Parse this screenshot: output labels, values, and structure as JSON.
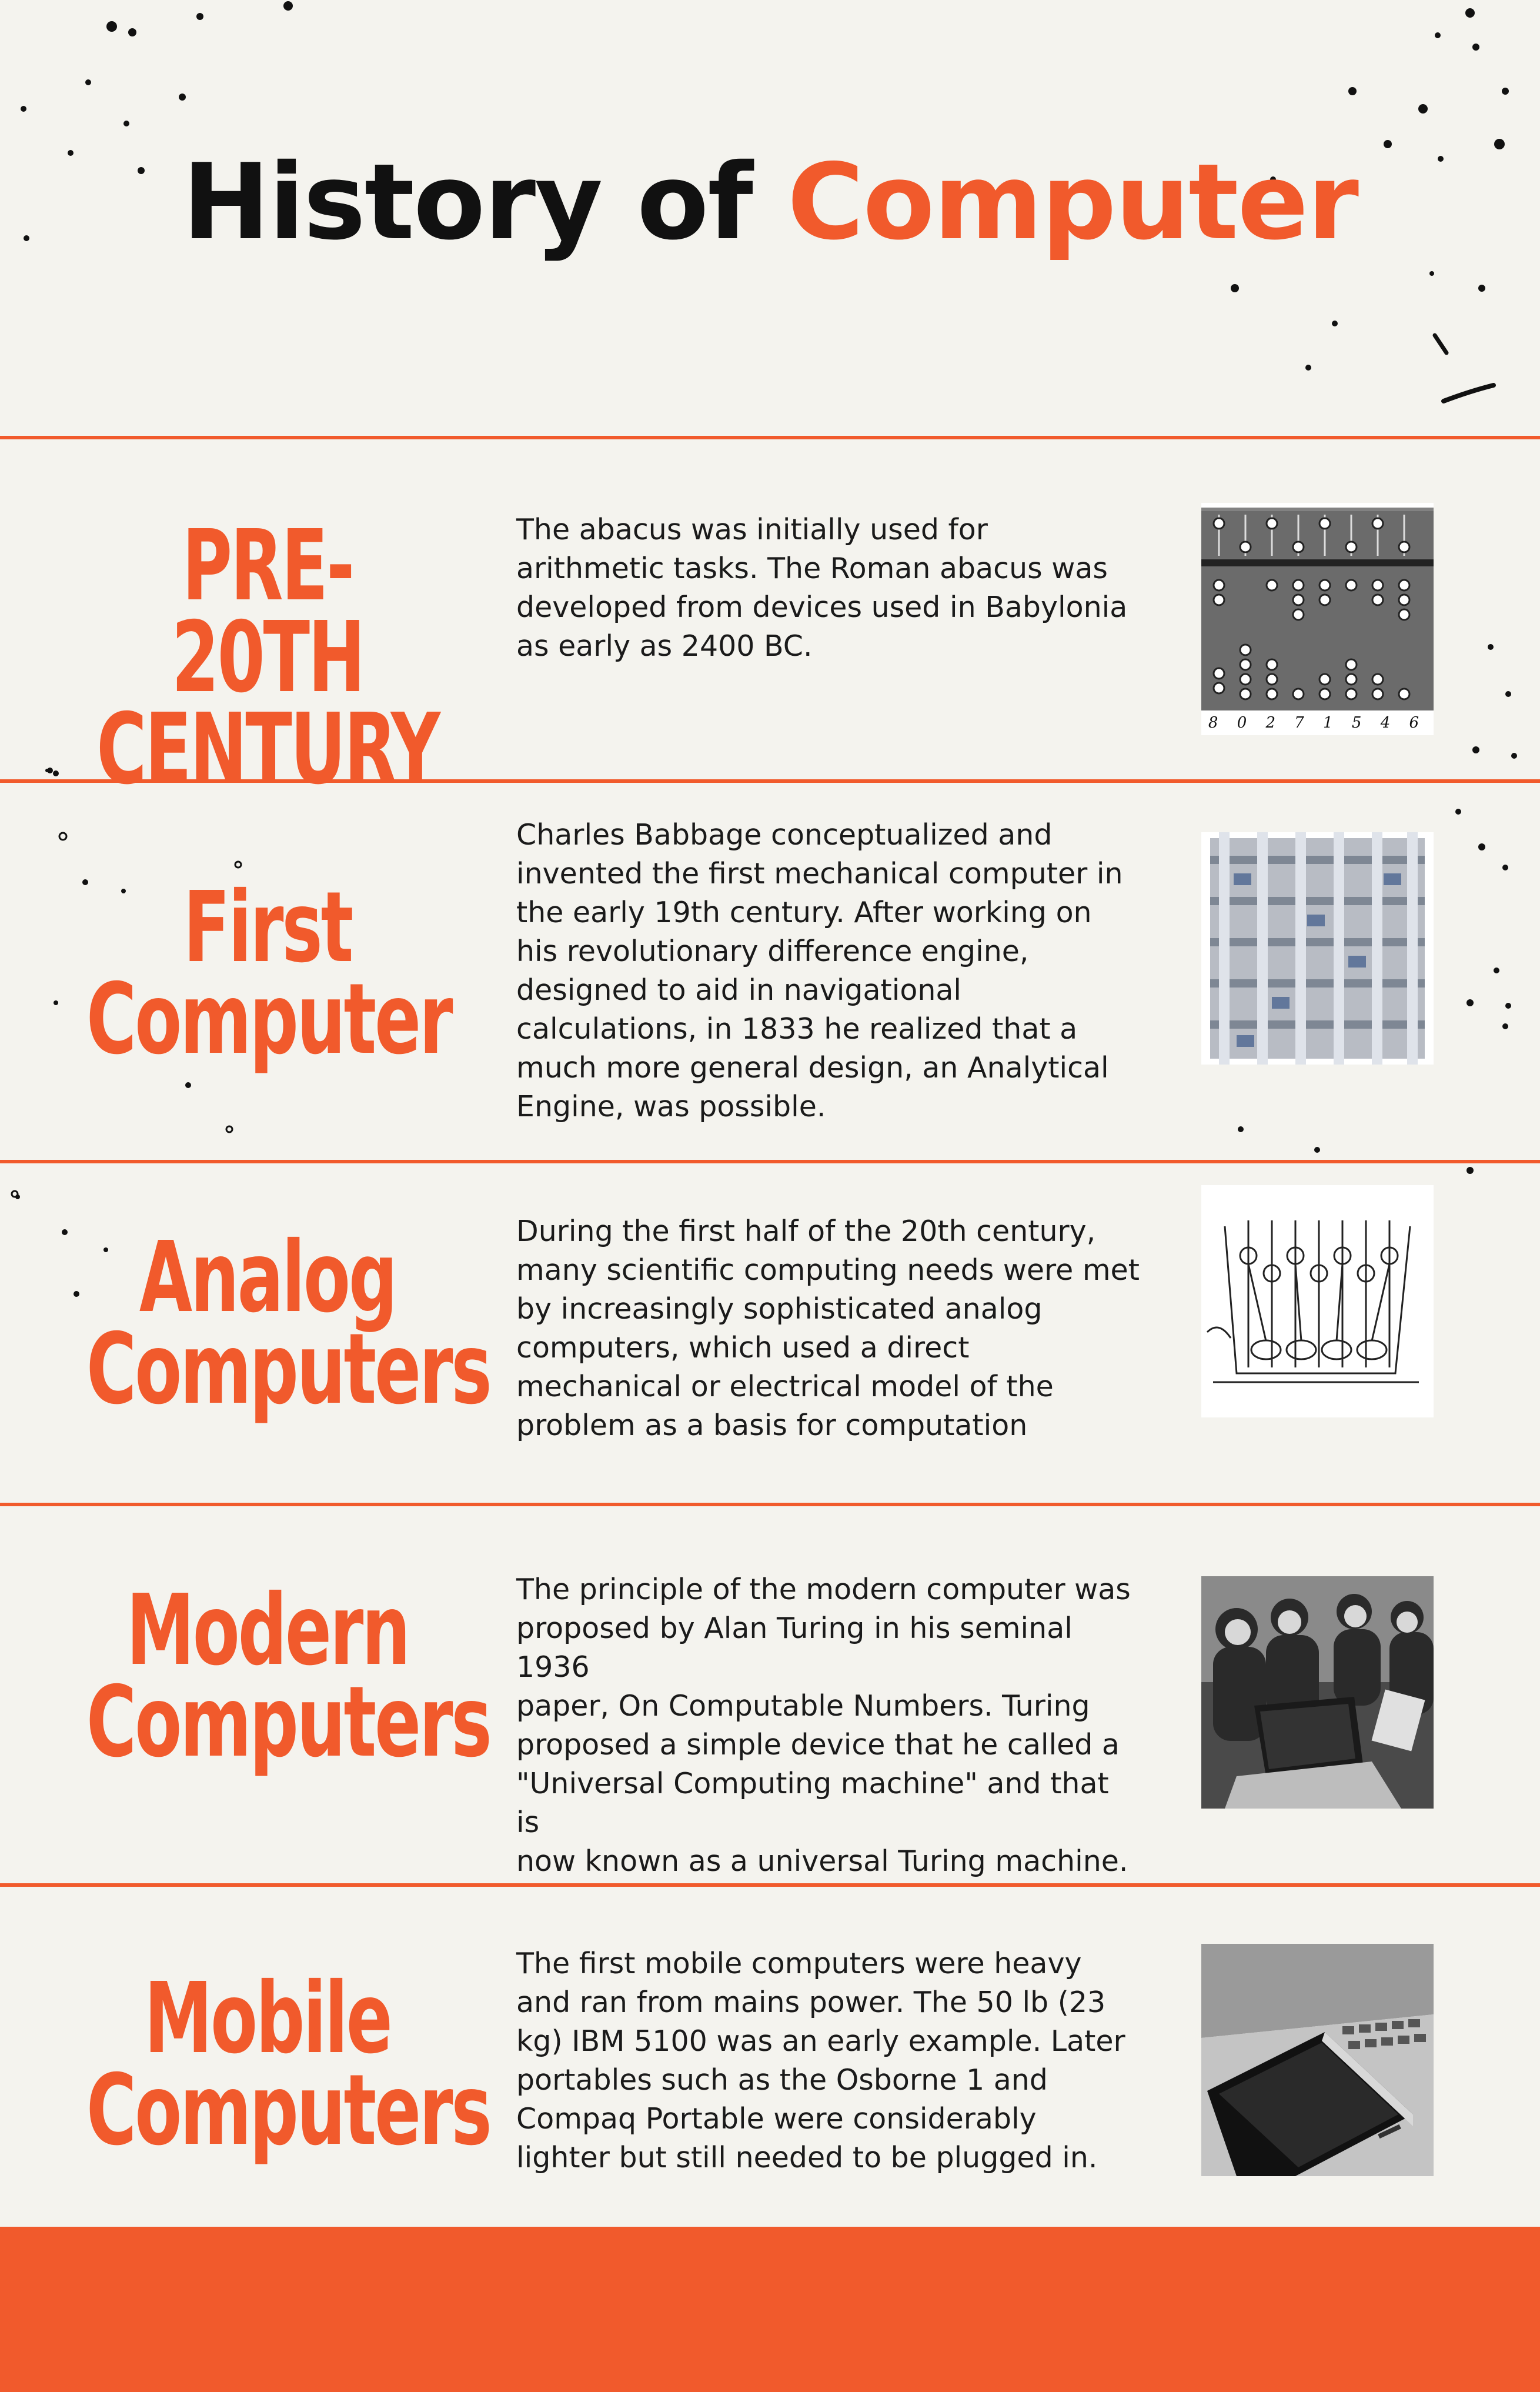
{
  "title": {
    "part1": "History of",
    "part2": "Computer"
  },
  "sections": [
    {
      "heading": "PRE-20TH\nCENTURY",
      "description": "The abacus was initially used for\narithmetic tasks. The Roman abacus was\ndeveloped from devices used in Babylonia\nas early as 2400 BC.",
      "image": "abacus-illustration",
      "image_caption": "8 0 2 7 1 5 4 6"
    },
    {
      "heading": "First\nComputer",
      "description": "Charles Babbage conceptualized and\ninvented the first mechanical computer in\nthe early 19th century. After working on\nhis revolutionary difference engine,\ndesigned to aid in navigational\ncalculations, in 1833 he realized that a\nmuch more general design, an Analytical\nEngine, was possible.",
      "image": "difference-engine-photo"
    },
    {
      "heading": "Analog\nComputers",
      "description": "During the first half of the 20th century,\nmany scientific computing needs were met\nby increasingly sophisticated analog\ncomputers, which used a direct\nmechanical or electrical model of the\nproblem as a basis for computation",
      "image": "analog-machine-drawing"
    },
    {
      "heading": "Modern\nComputers",
      "description": "The principle of the modern computer was\nproposed by Alan Turing in his seminal 1936\npaper, On Computable Numbers. Turing\nproposed a simple device that he called a\n\"Universal Computing machine\" and that is\nnow known as a universal Turing machine.",
      "image": "people-with-laptops-photo"
    },
    {
      "heading": "Mobile\nComputers",
      "description": "The first mobile computers were heavy\nand ran from mains power. The 50 lb (23\nkg) IBM 5100 was an early example. Later\nportables such as the Osborne 1 and\nCompaq Portable were considerably\nlighter but still needed to be plugged in.",
      "image": "laptop-and-phone-photo"
    }
  ],
  "colors": {
    "accent": "#f15a2c",
    "background": "#f4f3ee",
    "text": "#1a1a1a"
  }
}
